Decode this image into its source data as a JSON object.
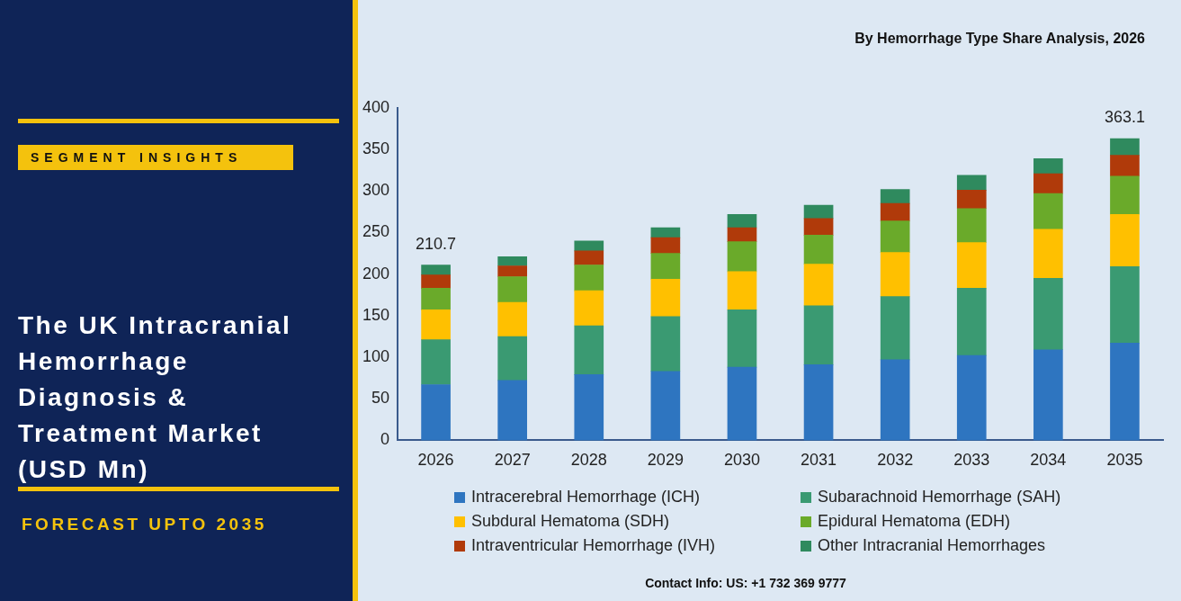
{
  "chart_data": {
    "type": "bar",
    "stacked": true,
    "title": "The UK Intracranial Hemorrhage Diagnosis & Treatment Market (USD Mn)",
    "subtitle": "By Hemorrhage Type Share Analysis, 2026",
    "annotations": [
      "SEGMENT INSIGHTS",
      "FORECAST UPTO 2035",
      "Contact Info: US: +1 732 369 9777"
    ],
    "categories": [
      "2026",
      "2027",
      "2028",
      "2029",
      "2030",
      "2031",
      "2032",
      "2033",
      "2034",
      "2035"
    ],
    "series": [
      {
        "name": "Intracerebral Hemorrhage (ICH)",
        "color": "#2e75c0",
        "values": [
          67,
          72,
          79,
          83,
          88,
          91,
          97,
          102,
          109,
          117
        ]
      },
      {
        "name": "Subarachnoid Hemorrhage (SAH)",
        "color": "#3a9a72",
        "values": [
          54,
          53,
          59,
          66,
          69,
          71,
          76,
          81,
          86,
          92
        ]
      },
      {
        "name": "Subdural Hematoma (SDH)",
        "color": "#ffc000",
        "values": [
          36,
          41,
          42,
          45,
          46,
          50,
          53,
          55,
          59,
          63
        ]
      },
      {
        "name": "Epidural Hematoma (EDH)",
        "color": "#6aaa2a",
        "values": [
          26,
          31,
          31,
          31,
          36,
          35,
          38,
          41,
          43,
          46
        ]
      },
      {
        "name": "Intraventricular Hemorrhage (IVH)",
        "color": "#b03a0a",
        "values": [
          16,
          13,
          17,
          19,
          17,
          20,
          21,
          22,
          24,
          25
        ]
      },
      {
        "name": "Other Intracranial Hemorrhages",
        "color": "#2f8a5e",
        "values": [
          12,
          11,
          12,
          12,
          16,
          16,
          17,
          18,
          18,
          20
        ]
      }
    ],
    "totals": [
      "210.7",
      null,
      null,
      null,
      null,
      null,
      null,
      null,
      null,
      "363.1"
    ],
    "ylim": [
      0,
      400
    ],
    "yticks": [
      0,
      50,
      100,
      150,
      200,
      250,
      300,
      350,
      400
    ],
    "grid": false,
    "legend": "bottom"
  }
}
